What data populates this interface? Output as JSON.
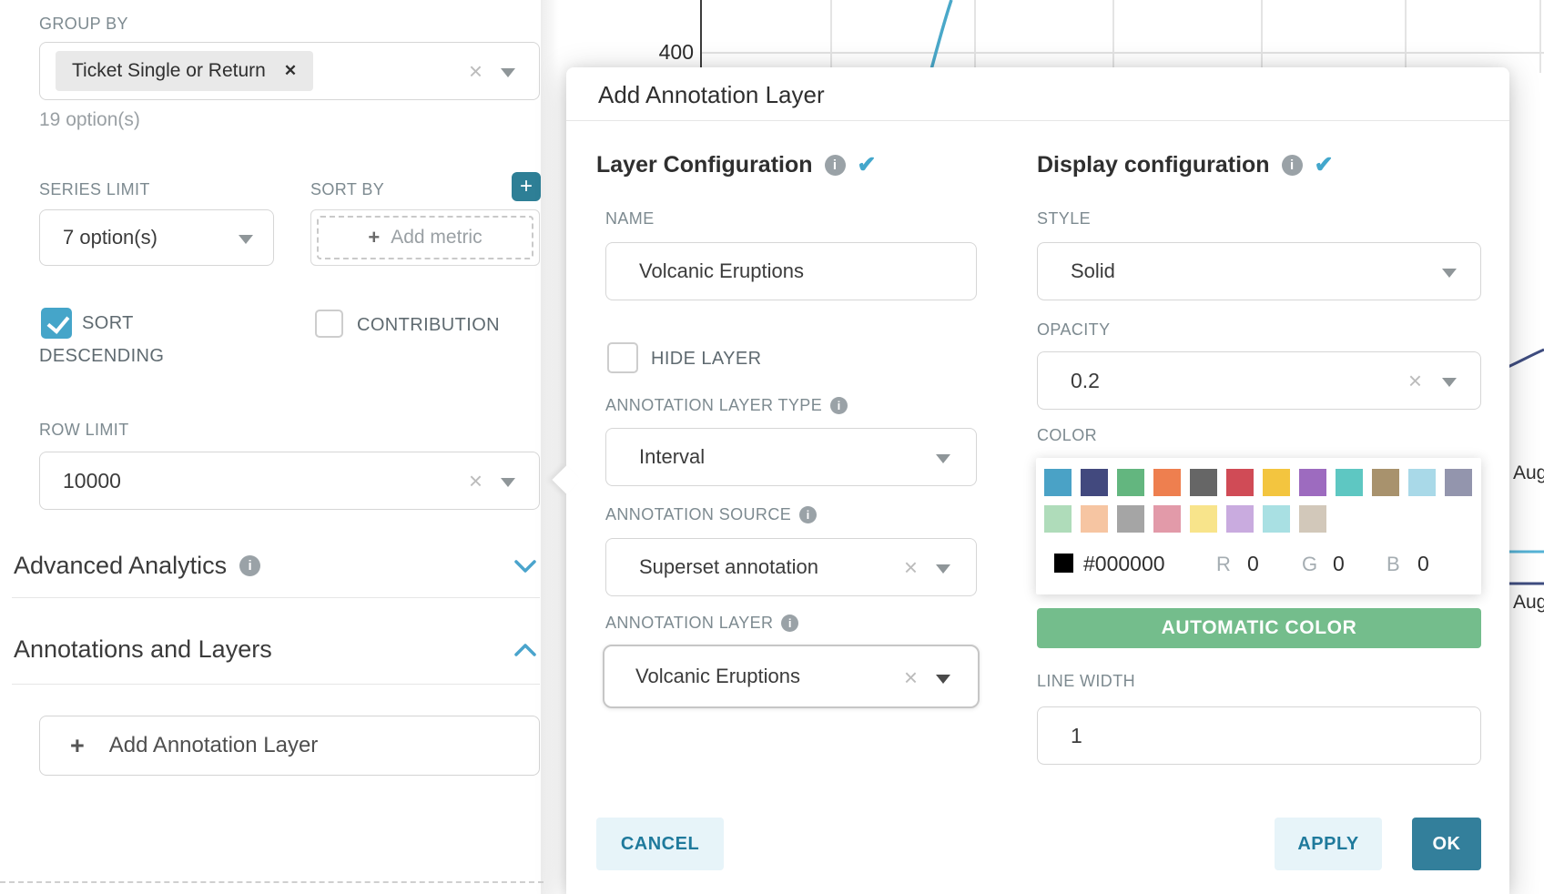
{
  "left_panel": {
    "group_by": {
      "label": "GROUP BY",
      "selected_tag": "Ticket Single or Return",
      "tag_remove_icon": "✕",
      "hint": "19 option(s)"
    },
    "series_limit": {
      "label": "SERIES LIMIT",
      "value": "7 option(s)"
    },
    "sort_by": {
      "label": "SORT BY",
      "add_metric_label": "Add metric",
      "plus": "+"
    },
    "sort_descending": {
      "label_line1": "SORT",
      "label_line2": "DESCENDING",
      "checked": true
    },
    "contribution": {
      "label": "CONTRIBUTION",
      "checked": false
    },
    "row_limit": {
      "label": "ROW LIMIT",
      "value": "10000"
    },
    "advanced_analytics": {
      "label": "Advanced Analytics",
      "info_icon": "i"
    },
    "annotations_and_layers": {
      "label": "Annotations and Layers"
    },
    "add_annotation_layer_button": {
      "plus": "+",
      "label": "Add Annotation Layer"
    }
  },
  "chart": {
    "y_tick_label": "400",
    "right_edge_labels": [
      "Aug",
      "Aug"
    ]
  },
  "modal": {
    "title": "Add Annotation Layer",
    "layer_configuration": {
      "heading": "Layer Configuration",
      "info_icon": "i",
      "valid_check": "✔",
      "name_label": "NAME",
      "name_value": "Volcanic Eruptions",
      "hide_layer_label": "HIDE LAYER",
      "hide_layer_checked": false,
      "annotation_layer_type_label": "ANNOTATION LAYER TYPE",
      "annotation_layer_type_value": "Interval",
      "annotation_source_label": "ANNOTATION SOURCE",
      "annotation_source_value": "Superset annotation",
      "annotation_layer_label": "ANNOTATION LAYER",
      "annotation_layer_value": "Volcanic Eruptions"
    },
    "display_configuration": {
      "heading": "Display configuration",
      "info_icon": "i",
      "valid_check": "✔",
      "style_label": "STYLE",
      "style_value": "Solid",
      "opacity_label": "OPACITY",
      "opacity_value": "0.2",
      "color_label": "COLOR",
      "palette_row1": [
        "#4aa2c6",
        "#42497e",
        "#63b67f",
        "#ee7f4f",
        "#666666",
        "#d04b56",
        "#f3c53f",
        "#9d6bbf",
        "#5ec7c2",
        "#a8926d",
        "#a9d9e8",
        "#9395ad"
      ],
      "palette_row2": [
        "#afdcba",
        "#f6c5a2",
        "#a5a5a5",
        "#e29aa9",
        "#f8e48b",
        "#c9abdf",
        "#a9e0e3",
        "#d2c8ba"
      ],
      "current_hex": "#000000",
      "r_label": "R",
      "r_value": "0",
      "g_label": "G",
      "g_value": "0",
      "b_label": "B",
      "b_value": "0",
      "automatic_color_label": "AUTOMATIC COLOR",
      "line_width_label": "LINE WIDTH",
      "line_width_value": "1"
    },
    "footer": {
      "cancel": "CANCEL",
      "apply": "APPLY",
      "ok": "OK"
    }
  }
}
